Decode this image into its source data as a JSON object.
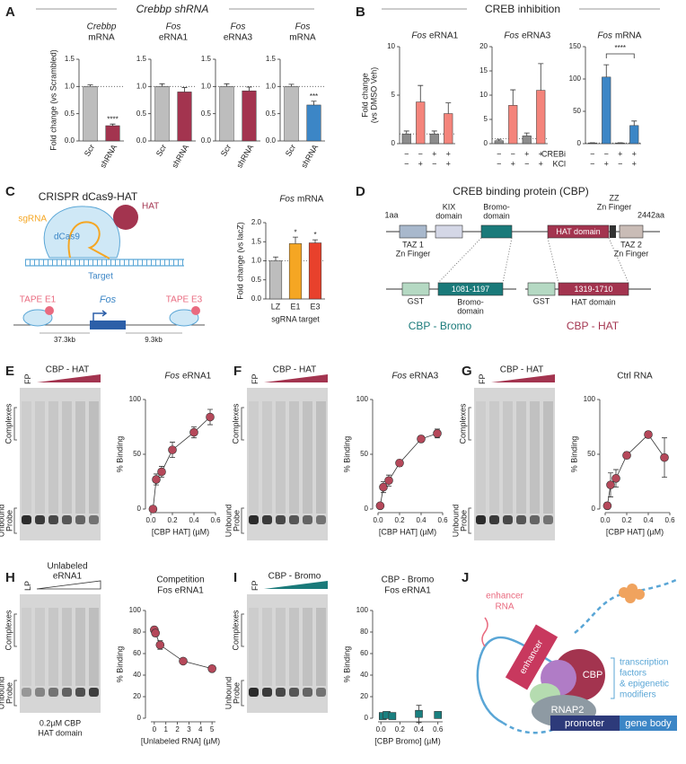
{
  "panel_labels": [
    "A",
    "B",
    "C",
    "D",
    "E",
    "F",
    "G",
    "H",
    "I",
    "J"
  ],
  "headers": {
    "a": "Crebbp shRNA",
    "b": "CREB inhibition"
  },
  "chart_data": [
    {
      "type": "bar",
      "title": [
        "Crebbp",
        "mRNA"
      ],
      "y_label": "Fold change (vs Scrambled)",
      "categories": [
        "Scr",
        "shRNA"
      ],
      "values": [
        1.0,
        0.28
      ],
      "errors": [
        0.03,
        0.03
      ],
      "colors": [
        "#bdbdbd",
        "#a3344f"
      ],
      "annotations": [
        null,
        "****"
      ],
      "ylim": [
        0,
        1.5
      ],
      "yticks": [
        {
          "value": 0,
          "label": "0.0"
        },
        0.5,
        {
          "value": 1,
          "label": "1.0"
        },
        1.5
      ],
      "reference_line": 1
    },
    {
      "type": "bar",
      "title": [
        "Fos",
        "eRNA1"
      ],
      "categories": [
        "Scr",
        "shRNA"
      ],
      "values": [
        1.0,
        0.9
      ],
      "errors": [
        0.05,
        0.08
      ],
      "colors": [
        "#bdbdbd",
        "#a3344f"
      ],
      "ylim": [
        0,
        1.5
      ],
      "yticks": [
        {
          "value": 0,
          "label": "0.0"
        },
        0.5,
        {
          "value": 1,
          "label": "1.0"
        },
        1.5
      ],
      "reference_line": 1
    },
    {
      "type": "bar",
      "title": [
        "Fos",
        "eRNA3"
      ],
      "categories": [
        "Scr",
        "shRNA"
      ],
      "values": [
        1.0,
        0.92
      ],
      "errors": [
        0.05,
        0.07
      ],
      "colors": [
        "#bdbdbd",
        "#a3344f"
      ],
      "ylim": [
        0,
        1.5
      ],
      "yticks": [
        {
          "value": 0,
          "label": "0.0"
        },
        0.5,
        {
          "value": 1,
          "label": "1.0"
        },
        1.5
      ],
      "reference_line": 1
    },
    {
      "type": "bar",
      "title": [
        "Fos",
        "mRNA"
      ],
      "categories": [
        "Scr",
        "shRNA"
      ],
      "values": [
        1.0,
        0.66
      ],
      "errors": [
        0.04,
        0.07
      ],
      "colors": [
        "#bdbdbd",
        "#3c86c6"
      ],
      "annotations": [
        null,
        "***"
      ],
      "ylim": [
        0,
        1.5
      ],
      "yticks": [
        {
          "value": 0,
          "label": "0.0"
        },
        0.5,
        {
          "value": 1,
          "label": "1.0"
        },
        1.5
      ],
      "reference_line": 1
    },
    {
      "type": "bar",
      "title": [
        "Fos",
        "eRNA1"
      ],
      "y_label": [
        "Fold change",
        "(vs DMSO Veh)"
      ],
      "values": [
        1.0,
        4.3,
        1.0,
        3.1
      ],
      "errors": [
        0.3,
        1.7,
        0.3,
        1.1
      ],
      "colors": [
        "#8c8c8c",
        "#f4847b",
        "#8c8c8c",
        "#f4847b"
      ],
      "ylim": [
        0,
        10
      ],
      "yticks": [
        0,
        5,
        10
      ],
      "reference_line": 1,
      "conditions": [
        {
          "values": [
            "−",
            "−",
            "+",
            "+"
          ]
        },
        {
          "values": [
            "−",
            "+",
            "−",
            "+"
          ]
        }
      ]
    },
    {
      "type": "bar",
      "title": [
        "Fos",
        "eRNA3"
      ],
      "values": [
        0.6,
        7.9,
        1.6,
        11.0
      ],
      "errors": [
        0.3,
        3.2,
        0.6,
        5.5
      ],
      "colors": [
        "#8c8c8c",
        "#f4847b",
        "#8c8c8c",
        "#f4847b"
      ],
      "ylim": [
        0,
        20
      ],
      "yticks": [
        0,
        5,
        10,
        15,
        20
      ],
      "reference_line": 1,
      "conditions": [
        {
          "values": [
            "−",
            "−",
            "+",
            "+"
          ]
        },
        {
          "values": [
            "−",
            "+",
            "−",
            "+"
          ]
        }
      ]
    },
    {
      "type": "bar",
      "title": [
        "Fos",
        "mRNA"
      ],
      "values": [
        1,
        103,
        1,
        28
      ],
      "errors": [
        0.3,
        19,
        0.3,
        7
      ],
      "colors": [
        "#8c8c8c",
        "#3c86c6",
        "#8c8c8c",
        "#3c86c6"
      ],
      "ylim": [
        0,
        150
      ],
      "yticks": [
        0,
        50,
        100,
        150
      ],
      "reference_line": 1,
      "bracket_label": "****",
      "conditions": [
        {
          "name": "CREBi",
          "values": [
            "−",
            "−",
            "+",
            "+"
          ]
        },
        {
          "name": "KCl",
          "values": [
            "−",
            "+",
            "−",
            "+"
          ]
        }
      ]
    },
    {
      "type": "bar",
      "title": [
        "Fos",
        "mRNA"
      ],
      "y_label": "Fold change (vs lacZ)",
      "x_label": "sgRNA target",
      "categories": [
        "LZ",
        "E1",
        "E3"
      ],
      "values": [
        1.0,
        1.45,
        1.47
      ],
      "errors": [
        0.1,
        0.17,
        0.08
      ],
      "colors": [
        "#bdbdbd",
        "#f5a623",
        "#e8412c"
      ],
      "annotations": [
        null,
        "*",
        "*"
      ],
      "ylim": [
        0,
        2
      ],
      "yticks": [
        {
          "value": 0,
          "label": "0.0"
        },
        0.5,
        {
          "value": 1,
          "label": "1.0"
        },
        1.5,
        {
          "value": 2,
          "label": "2.0"
        }
      ],
      "reference_line": 1
    },
    {
      "type": "scatter",
      "title": [
        "Fos",
        "eRNA1"
      ],
      "x": [
        0.02,
        0.05,
        0.1,
        0.2,
        0.4,
        0.55
      ],
      "values": [
        0,
        27,
        34,
        54,
        70,
        84
      ],
      "errors": [
        0,
        5,
        5,
        7,
        5,
        7
      ],
      "xlim": [
        0,
        0.6
      ],
      "xticks": [
        {
          "value": 0,
          "label": "0.0"
        },
        0.2,
        0.4,
        0.6
      ],
      "ylim": [
        0,
        100
      ],
      "yticks": [
        0,
        50,
        100
      ],
      "x_label": "[CBP HAT] (µM)",
      "y_label": "% Binding",
      "color": "#b5485a",
      "marker": "circle",
      "fit_line": true
    },
    {
      "type": "scatter",
      "title": [
        "Fos",
        "eRNA3"
      ],
      "x": [
        0.02,
        0.05,
        0.1,
        0.2,
        0.4,
        0.55
      ],
      "values": [
        3,
        20,
        26,
        42,
        64,
        69
      ],
      "errors": [
        2,
        5,
        5,
        3,
        3,
        4
      ],
      "xlim": [
        0,
        0.6
      ],
      "xticks": [
        {
          "value": 0,
          "label": "0.0"
        },
        0.2,
        0.4,
        0.6
      ],
      "ylim": [
        0,
        100
      ],
      "yticks": [
        0,
        50,
        100
      ],
      "x_label": "[CBP HAT] (µM)",
      "y_label": "% Binding",
      "color": "#b5485a",
      "marker": "circle",
      "fit_line": true
    },
    {
      "type": "scatter",
      "title": [
        "Ctrl RNA"
      ],
      "x": [
        0.02,
        0.05,
        0.1,
        0.2,
        0.4,
        0.55
      ],
      "values": [
        3,
        22,
        28,
        49,
        68,
        47
      ],
      "errors": [
        3,
        11,
        8,
        3,
        3,
        18
      ],
      "xlim": [
        0,
        0.6
      ],
      "xticks": [
        {
          "value": 0,
          "label": "0.0"
        },
        0.2,
        0.4,
        0.6
      ],
      "ylim": [
        0,
        100
      ],
      "yticks": [
        0,
        50,
        100
      ],
      "x_label": "[CBP HAT] (µM)",
      "y_label": "% Binding",
      "color": "#b5485a",
      "marker": "circle",
      "fit_line": true
    },
    {
      "type": "scatter",
      "title": [
        "Competition",
        "Fos eRNA1"
      ],
      "x": [
        0,
        0.1,
        0.5,
        2.5,
        5
      ],
      "values": [
        82,
        79,
        68,
        53,
        46
      ],
      "errors": [
        3,
        3,
        4,
        2,
        2
      ],
      "xlim": [
        -0.3,
        5.3
      ],
      "xticks": [
        0,
        1,
        2,
        3,
        4,
        5
      ],
      "ylim": [
        0,
        100
      ],
      "yticks": [
        0,
        20,
        40,
        60,
        80,
        100
      ],
      "x_label": "[Unlabeled RNA] (µM)",
      "y_label": "% Binding",
      "color": "#b5485a",
      "marker": "circle",
      "fit_line": true
    },
    {
      "type": "scatter",
      "title": [
        "CBP - Bromo",
        "Fos eRNA1"
      ],
      "x": [
        0.02,
        0.06,
        0.12,
        0.4,
        0.6
      ],
      "values": [
        2,
        3,
        2,
        4,
        3
      ],
      "errors": [
        1,
        2,
        1,
        8,
        1
      ],
      "xlim": [
        -0.03,
        0.65
      ],
      "xticks": [
        {
          "value": 0,
          "label": "0.0"
        },
        0.2,
        0.4,
        0.6
      ],
      "ylim": [
        0,
        100
      ],
      "yticks": [
        0,
        20,
        40,
        60,
        80,
        100
      ],
      "x_label": "[CBP Bromo] (µM)",
      "y_label": "% Binding",
      "color": "#1a8080",
      "marker": "square"
    }
  ],
  "gels": [
    {
      "lane_label": "FP",
      "title": [
        "CBP - HAT"
      ],
      "complexes": "Complexes",
      "unbound": [
        "Unbound",
        "Probe"
      ]
    },
    {
      "lane_label": "FP",
      "title": [
        "CBP - HAT"
      ],
      "complexes": "Complexes",
      "unbound": [
        "Unbound",
        "Probe"
      ]
    },
    {
      "lane_label": "FP",
      "title": [
        "CBP - HAT"
      ],
      "complexes": "Complexes",
      "unbound": [
        "Unbound",
        "Probe"
      ]
    },
    {
      "lane_label": "LP",
      "title": [
        "Unlabeled",
        "eRNA1"
      ],
      "complexes": "Complexes",
      "unbound": [
        "Unbound",
        "Probe"
      ],
      "caption": [
        "0.2µM CBP",
        "HAT domain"
      ]
    },
    {
      "lane_label": "FP",
      "title": [
        "CBP - Bromo"
      ],
      "complexes": "Complexes",
      "unbound": [
        "Unbound",
        "Probe"
      ]
    }
  ],
  "diagram_c": {
    "title": "CRISPR dCas9-HAT",
    "sgrna": "sgRNA",
    "hat": "HAT",
    "dcas9": "dCas9",
    "target": "Target",
    "tape_e1": "TAPE E1",
    "fos": "Fos",
    "tape_e3": "TAPE E3",
    "dist_left": "37.3kb",
    "dist_right": "9.3kb"
  },
  "diagram_d": {
    "title": "CREB binding protein (CBP)",
    "start": "1aa",
    "end": "2442aa",
    "domains": [
      [
        "TAZ 1",
        "Zn Finger"
      ],
      [
        "KIX",
        "domain"
      ],
      [
        "Bromo-",
        "domain"
      ],
      [
        "HAT domain"
      ],
      [
        "ZZ",
        "Zn Finger"
      ],
      [
        "TAZ 2",
        "Zn Finger"
      ]
    ],
    "constructs": [
      {
        "tag": "GST",
        "range": "1081-1197",
        "label": [
          "Bromo-",
          "domain"
        ],
        "name": "CBP - Bromo"
      },
      {
        "tag": "GST",
        "range": "1319-1710",
        "label": [
          "HAT domain"
        ],
        "name": "CBP - HAT"
      }
    ]
  },
  "diagram_j": {
    "enhancer_rna": [
      "enhancer",
      "RNA"
    ],
    "enhancer": "enhancer",
    "cbp": "CBP",
    "rnap2": "RNAP2",
    "promoter": "promoter",
    "gene_body": "gene body",
    "factors": [
      "transcription",
      "factors",
      "& epigenetic",
      "modifiers"
    ]
  }
}
